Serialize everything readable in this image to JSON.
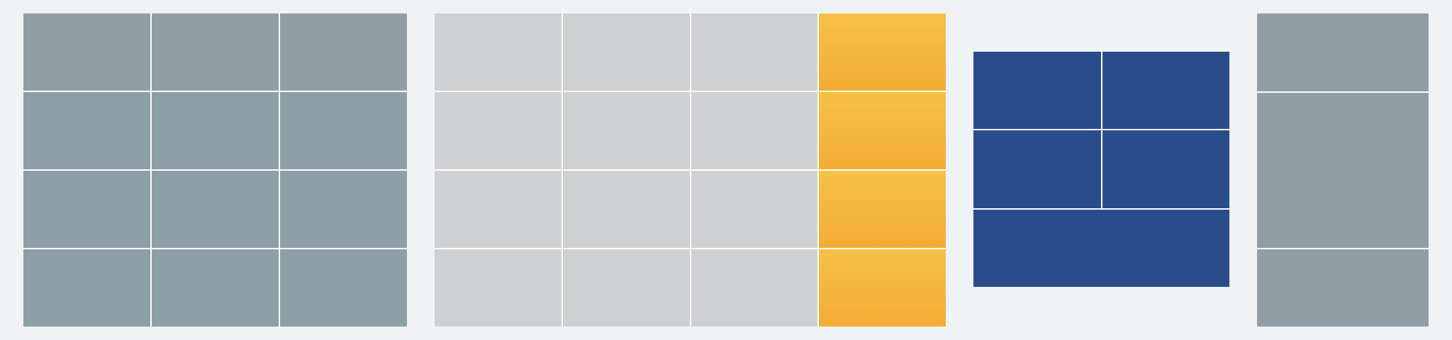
{
  "colors": {
    "background": "#eff3f6",
    "slate": "#909fa6",
    "light_gray": "#cfd0d2",
    "amber": "#f5b63c",
    "navy": "#294d8b",
    "divider": "#ffffff"
  },
  "panels": [
    {
      "id": "slate-grid",
      "columns": 3,
      "rows": 4,
      "color": "slate"
    },
    {
      "id": "gray-grid-with-highlight",
      "columns": 4,
      "rows": 4,
      "color": "light_gray",
      "highlight_column": 4,
      "highlight_color": "amber"
    },
    {
      "id": "navy-blocks",
      "columns": 2,
      "rows": 3,
      "color": "navy",
      "bottom_row_merged": true
    },
    {
      "id": "slate-column",
      "columns": 1,
      "rows": 3,
      "color": "slate",
      "middle_row_weight": 2
    }
  ]
}
